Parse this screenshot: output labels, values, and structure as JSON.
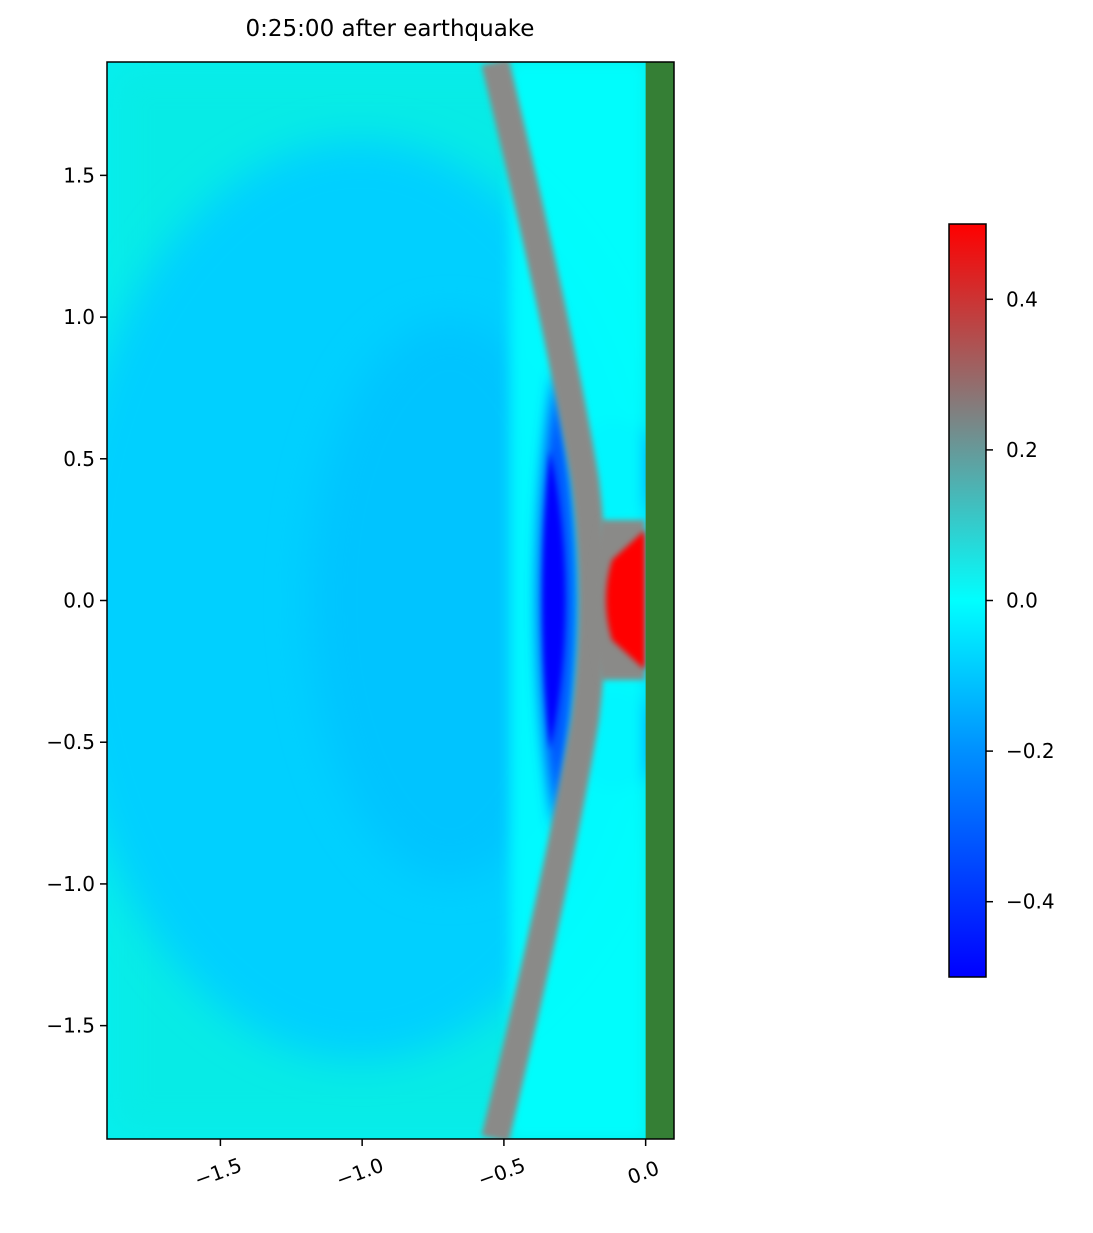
{
  "chart_data": {
    "type": "heatmap",
    "title": "0:25:00 after earthquake",
    "xlim": [
      -1.9,
      0.1
    ],
    "ylim": [
      -1.9,
      1.9
    ],
    "xticks": [
      {
        "value": -1.5,
        "label": "−1.5"
      },
      {
        "value": -1.0,
        "label": "−1.0"
      },
      {
        "value": -0.5,
        "label": "−0.5"
      },
      {
        "value": 0.0,
        "label": "0.0"
      }
    ],
    "yticks": [
      {
        "value": 1.5,
        "label": "1.5"
      },
      {
        "value": 1.0,
        "label": "1.0"
      },
      {
        "value": 0.5,
        "label": "0.5"
      },
      {
        "value": 0.0,
        "label": "0.0"
      },
      {
        "value": -0.5,
        "label": "−0.5"
      },
      {
        "value": -1.0,
        "label": "−1.0"
      },
      {
        "value": -1.5,
        "label": "−1.5"
      }
    ],
    "land": {
      "color": "#357f35",
      "xlim": [
        0,
        0.1
      ]
    },
    "colorbar": {
      "clim": [
        -0.5,
        0.5
      ],
      "ticks": [
        {
          "value": 0.4,
          "label": "0.4"
        },
        {
          "value": 0.2,
          "label": "0.2"
        },
        {
          "value": 0.0,
          "label": "0.0"
        },
        {
          "value": -0.2,
          "label": "−0.2"
        },
        {
          "value": -0.4,
          "label": "−0.4"
        }
      ],
      "colormap": [
        {
          "value": -0.5,
          "color": "#0000ff"
        },
        {
          "value": -0.2,
          "color": "#0090ff"
        },
        {
          "value": 0.0,
          "color": "#00ffff"
        },
        {
          "value": 0.25,
          "color": "#808080"
        },
        {
          "value": 0.5,
          "color": "#ff0000"
        }
      ]
    }
  }
}
